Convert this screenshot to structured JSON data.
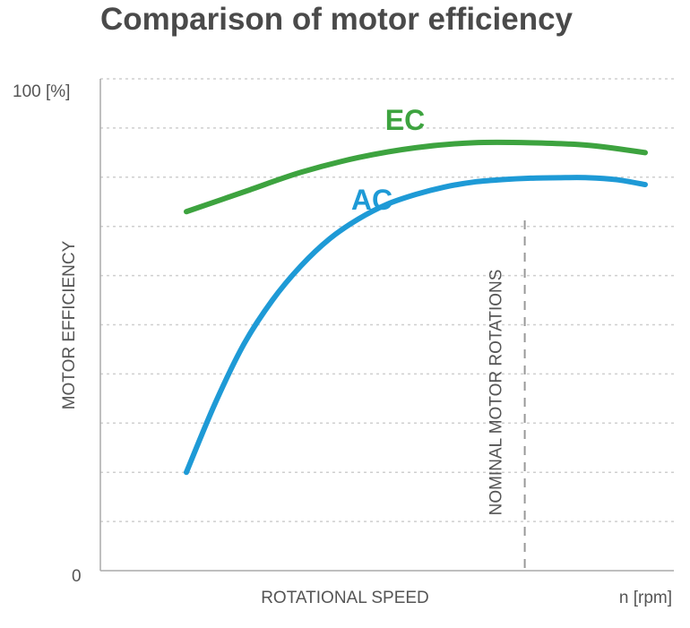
{
  "chart_data": {
    "type": "line",
    "title": "Comparison of motor efficiency",
    "xlabel": "ROTATIONAL SPEED",
    "x_unit": "n [rpm]",
    "ylabel": "MOTOR EFFICIENCY",
    "y_top_label": "100 [%]",
    "y_bottom_label": "0",
    "ylim": [
      0,
      100
    ],
    "grid": true,
    "annotation": "NOMINAL MOTOR ROTATIONS",
    "nominal_x": 0.74,
    "series": [
      {
        "name": "EC",
        "color": "#3da33f",
        "x": [
          0.15,
          0.25,
          0.35,
          0.45,
          0.55,
          0.65,
          0.75,
          0.85,
          0.95
        ],
        "y": [
          73,
          77,
          81,
          84,
          86,
          87,
          87,
          86.5,
          85
        ]
      },
      {
        "name": "AC",
        "color": "#1e9ad6",
        "x": [
          0.15,
          0.2,
          0.25,
          0.3,
          0.35,
          0.4,
          0.45,
          0.5,
          0.55,
          0.6,
          0.65,
          0.7,
          0.75,
          0.8,
          0.85,
          0.9,
          0.95
        ],
        "y": [
          20,
          34,
          46,
          55,
          62,
          67.5,
          71.5,
          74.5,
          76.5,
          78,
          79,
          79.5,
          79.8,
          79.9,
          79.9,
          79.5,
          78.5
        ]
      }
    ]
  }
}
